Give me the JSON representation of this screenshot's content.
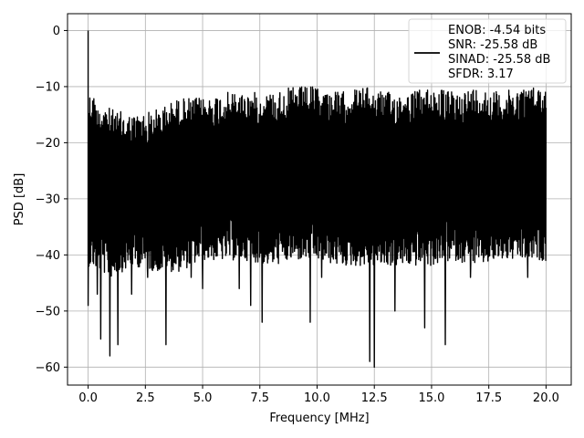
{
  "chart_data": {
    "type": "line",
    "xlabel": "Frequency [MHz]",
    "ylabel": "PSD [dB]",
    "xlim": [
      -0.9,
      21.1
    ],
    "ylim": [
      -63.2,
      3.0
    ],
    "x_ticks": [
      0.0,
      2.5,
      5.0,
      7.5,
      10.0,
      12.5,
      15.0,
      17.5,
      20.0
    ],
    "x_tick_labels": [
      "0.0",
      "2.5",
      "5.0",
      "7.5",
      "10.0",
      "12.5",
      "15.0",
      "17.5",
      "20.0"
    ],
    "y_ticks": [
      0,
      -10,
      -20,
      -30,
      -40,
      -50,
      -60
    ],
    "y_tick_labels": [
      "0",
      "−10",
      "−20",
      "−30",
      "−40",
      "−50",
      "−60"
    ],
    "grid": true,
    "legend_position": "top-right",
    "series": [
      {
        "name": "ENOB: -4.54 bits\nSNR: -25.58 dB\nSINAD: -25.58 dB\nSFDR: 3.17",
        "legend_lines": [
          "ENOB: -4.54 bits",
          "SNR: -25.58 dB",
          "SINAD: -25.58 dB",
          "SFDR: 3.17"
        ],
        "color": "#000000",
        "x_range": [
          0.0,
          20.0
        ],
        "peak": {
          "x": 0.05,
          "y": 0.0
        },
        "upper_envelope": [
          [
            0.1,
            -11
          ],
          [
            1.0,
            -14
          ],
          [
            2.0,
            -15
          ],
          [
            3.0,
            -14
          ],
          [
            4.0,
            -12
          ],
          [
            5.0,
            -12
          ],
          [
            6.0,
            -11
          ],
          [
            7.0,
            -11
          ],
          [
            8.0,
            -11
          ],
          [
            9.0,
            -10
          ],
          [
            10.0,
            -10
          ],
          [
            11.0,
            -11
          ],
          [
            12.0,
            -10
          ],
          [
            13.0,
            -11
          ],
          [
            14.0,
            -11
          ],
          [
            15.0,
            -10
          ],
          [
            16.0,
            -11
          ],
          [
            17.0,
            -10
          ],
          [
            18.0,
            -11
          ],
          [
            19.0,
            -10
          ],
          [
            20.0,
            -10
          ]
        ],
        "lower_envelope": [
          [
            0.1,
            -38
          ],
          [
            1.0,
            -40
          ],
          [
            2.0,
            -38
          ],
          [
            3.0,
            -39
          ],
          [
            4.0,
            -39
          ],
          [
            5.0,
            -37
          ],
          [
            6.0,
            -37
          ],
          [
            7.0,
            -37
          ],
          [
            8.0,
            -38
          ],
          [
            9.0,
            -37
          ],
          [
            10.0,
            -37
          ],
          [
            11.0,
            -38
          ],
          [
            12.0,
            -38
          ],
          [
            13.0,
            -38
          ],
          [
            14.0,
            -38
          ],
          [
            15.0,
            -38
          ],
          [
            16.0,
            -37
          ],
          [
            17.0,
            -38
          ],
          [
            18.0,
            -37
          ],
          [
            19.0,
            -37
          ],
          [
            20.0,
            -37
          ]
        ],
        "notable_dips": [
          {
            "x": 0.0,
            "y": -49
          },
          {
            "x": 0.4,
            "y": -47
          },
          {
            "x": 0.55,
            "y": -55
          },
          {
            "x": 0.95,
            "y": -58
          },
          {
            "x": 1.3,
            "y": -56
          },
          {
            "x": 1.9,
            "y": -47
          },
          {
            "x": 2.6,
            "y": -44
          },
          {
            "x": 3.4,
            "y": -56
          },
          {
            "x": 4.5,
            "y": -44
          },
          {
            "x": 5.0,
            "y": -46
          },
          {
            "x": 6.6,
            "y": -46
          },
          {
            "x": 7.1,
            "y": -49
          },
          {
            "x": 7.6,
            "y": -52
          },
          {
            "x": 9.7,
            "y": -52
          },
          {
            "x": 10.2,
            "y": -44
          },
          {
            "x": 12.3,
            "y": -59
          },
          {
            "x": 12.5,
            "y": -60
          },
          {
            "x": 13.4,
            "y": -50
          },
          {
            "x": 14.7,
            "y": -53
          },
          {
            "x": 15.6,
            "y": -56
          },
          {
            "x": 16.7,
            "y": -44
          },
          {
            "x": 19.2,
            "y": -44
          }
        ]
      }
    ]
  }
}
